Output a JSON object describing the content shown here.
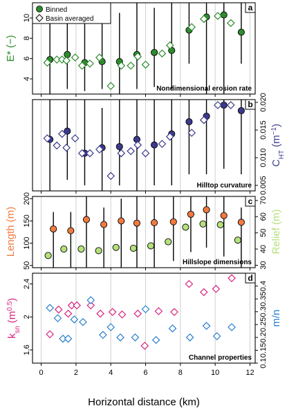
{
  "chart_data": [
    {
      "type": "scatter",
      "panel_label": "a",
      "title": "Nondimensional erosion rate",
      "ylabel": "E* (−)",
      "ylim": [
        2.5,
        11.5
      ],
      "yticks": [
        4,
        6,
        8,
        10
      ],
      "xlim": [
        -0.5,
        12.3
      ],
      "legend": {
        "position": "top-left",
        "entries": [
          "Binned",
          "Basin averaged"
        ]
      },
      "series": [
        {
          "name": "Binned",
          "marker": "circle",
          "color": "#2e8b2e",
          "x": [
            0.5,
            1.5,
            2.5,
            3.5,
            4.5,
            5.5,
            6.5,
            7.5,
            8.5,
            9.5,
            10.5,
            11.5
          ],
          "y": [
            5.9,
            6.4,
            5.6,
            5.7,
            5.7,
            6.4,
            6.6,
            6.8,
            8.8,
            10.1,
            10.3,
            8.6
          ],
          "ymin": [
            2.5,
            3.0,
            2.8,
            3.0,
            2.5,
            3.0,
            3.2,
            3.0,
            5.5,
            2.5,
            2.5,
            5.5
          ],
          "ymax": [
            11.5,
            10.5,
            11.5,
            11.0,
            10.5,
            11.5,
            11.0,
            11.5,
            11.5,
            11.5,
            11.5,
            11.5
          ]
        },
        {
          "name": "Basin averaged",
          "marker": "diamond",
          "color": "#2e8b2e",
          "x": [
            0.35,
            0.9,
            1.2,
            1.45,
            1.95,
            2.35,
            2.8,
            3.35,
            4.0,
            4.6,
            5.15,
            5.55,
            6.0,
            6.95,
            7.4,
            8.65,
            9.35,
            10.15,
            10.9
          ],
          "y": [
            5.6,
            5.9,
            5.9,
            5.8,
            6.1,
            5.3,
            5.5,
            6.1,
            3.3,
            5.3,
            5.3,
            6.2,
            5.4,
            6.5,
            7.3,
            9.1,
            9.9,
            10.2,
            9.5
          ]
        }
      ]
    },
    {
      "type": "scatter",
      "panel_label": "b",
      "title": "Hilltop curvature",
      "ylabel": "C_HT (m⁻¹)",
      "ylim": [
        0.004,
        0.0205
      ],
      "yticks": [
        0.005,
        0.01,
        0.015,
        0.02
      ],
      "ytick_labels": [
        "0.005",
        "0.010",
        "0.015",
        "0.020"
      ],
      "xlim": [
        -0.5,
        12.3
      ],
      "series": [
        {
          "name": "Binned",
          "marker": "circle",
          "color": "#3b3a8c",
          "x": [
            0.5,
            1.5,
            2.5,
            3.5,
            4.5,
            5.5,
            6.5,
            7.5,
            8.5,
            9.5,
            10.5,
            11.5
          ],
          "y": [
            0.0133,
            0.0148,
            0.0108,
            0.0118,
            0.012,
            0.0133,
            0.0123,
            0.0143,
            0.0165,
            0.0175,
            0.0195,
            0.0185
          ],
          "ymin": [
            0.004,
            0.006,
            0.005,
            0.004,
            0.005,
            0.004,
            0.005,
            0.005,
            0.007,
            0.007,
            0.008,
            0.007
          ],
          "ymax": [
            0.0205,
            0.0205,
            0.0205,
            0.019,
            0.0205,
            0.0205,
            0.0205,
            0.0205,
            0.0205,
            0.0205,
            0.0205,
            0.0205
          ]
        },
        {
          "name": "Basin averaged",
          "marker": "diamond",
          "color": "#3b3a8c",
          "x": [
            0.35,
            0.9,
            1.2,
            1.45,
            1.95,
            2.35,
            2.8,
            3.35,
            4.0,
            4.6,
            5.15,
            5.55,
            6.0,
            6.95,
            7.4,
            8.65,
            9.35,
            10.15,
            10.9
          ],
          "y": [
            0.0135,
            0.0122,
            0.0143,
            0.0118,
            0.0135,
            0.0108,
            0.0108,
            0.0115,
            0.0067,
            0.0108,
            0.0112,
            0.0123,
            0.0108,
            0.0125,
            0.0138,
            0.0145,
            0.0168,
            0.0195,
            0.0195
          ]
        }
      ]
    },
    {
      "type": "scatter",
      "panel_label": "c",
      "title": "Hillslope dimensions",
      "ylabel": "Length (m)",
      "ylabel_right": "Relief (m)",
      "ylim": [
        45,
        205
      ],
      "yticks": [
        50,
        100,
        150,
        200
      ],
      "ylim_right": [
        28.5,
        72.5
      ],
      "yticks_right": [
        30,
        40,
        50,
        60,
        70
      ],
      "xlim": [
        -0.5,
        12.3
      ],
      "series": [
        {
          "name": "Length",
          "marker": "circle",
          "color": "#f07a40",
          "x": [
            0.7,
            1.7,
            2.6,
            3.6,
            4.6,
            5.5,
            6.5,
            7.6,
            8.6,
            9.5,
            10.5,
            11.5
          ],
          "y": [
            132,
            128,
            153,
            142,
            150,
            145,
            146,
            148,
            165,
            175,
            162,
            147
          ],
          "ymin": [
            45,
            45,
            45,
            45,
            45,
            45,
            45,
            60,
            80,
            90,
            70,
            45
          ],
          "ymax": [
            170,
            170,
            205,
            180,
            200,
            205,
            205,
            205,
            205,
            205,
            205,
            180
          ]
        },
        {
          "name": "Relief",
          "marker": "circle",
          "color": "#b5e07a",
          "axis": "right",
          "x": [
            0.4,
            1.3,
            2.3,
            3.3,
            4.3,
            5.3,
            6.3,
            7.3,
            8.3,
            9.3,
            10.3,
            11.3
          ],
          "y": [
            36.0,
            40.0,
            40.0,
            39.0,
            41.0,
            40.5,
            42.0,
            44.5,
            53.5,
            55.5,
            55.0,
            45.5
          ]
        }
      ]
    },
    {
      "type": "scatter",
      "panel_label": "d",
      "title": "Channel properties",
      "ylabel": "k_sn (m^0.5)",
      "ylabel_right": "m/n",
      "xlabel": "Horizontal distance (km)",
      "ylim": [
        1.44,
        2.53
      ],
      "yticks": [
        1.6,
        2.0,
        2.4
      ],
      "ylim_right": [
        0.1,
        0.45
      ],
      "yticks_right": [
        0.1,
        0.15,
        0.2,
        0.25,
        0.3,
        0.35,
        0.4
      ],
      "xlim": [
        -0.5,
        12.3
      ],
      "xticks": [
        0,
        2,
        4,
        6,
        8,
        10,
        12
      ],
      "series": [
        {
          "name": "k_sn",
          "marker": "diamond",
          "color": "#d6247f",
          "x": [
            0.5,
            1.0,
            1.55,
            1.75,
            2.05,
            2.85,
            3.4,
            4.1,
            4.65,
            5.55,
            5.95,
            6.75,
            7.65,
            8.5,
            9.35,
            10.05,
            10.95
          ],
          "y": [
            1.79,
            2.09,
            2.04,
            2.14,
            2.14,
            2.14,
            2.04,
            2.06,
            2.03,
            2.04,
            1.65,
            2.07,
            2.06,
            2.4,
            2.3,
            2.34,
            2.47
          ]
        },
        {
          "name": "m/n",
          "marker": "diamond",
          "color": "#2a7fd0",
          "axis": "right",
          "x": [
            0.5,
            0.95,
            1.25,
            1.55,
            1.9,
            2.4,
            2.85,
            3.55,
            4.0,
            4.55,
            5.4,
            6.0,
            6.6,
            7.55,
            8.55,
            9.5,
            10.1,
            10.95
          ],
          "y": [
            0.315,
            0.275,
            0.195,
            0.195,
            0.27,
            0.26,
            0.345,
            0.21,
            0.24,
            0.2,
            0.2,
            0.31,
            0.19,
            0.235,
            0.2,
            0.245,
            0.205,
            0.24
          ]
        }
      ]
    }
  ],
  "colors": {
    "green": "#2e8b2e",
    "navy": "#3b3a8c",
    "orange": "#f07a40",
    "lightgreen": "#b5e07a",
    "magenta": "#d6247f",
    "blue": "#2a7fd0"
  }
}
